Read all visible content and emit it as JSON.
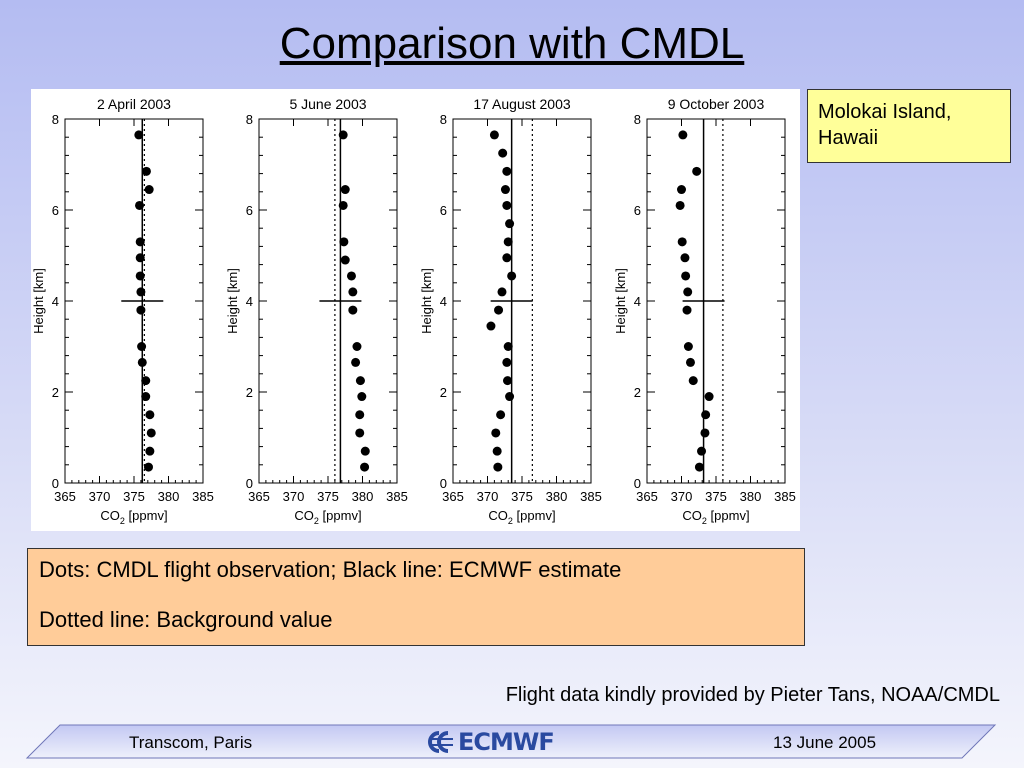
{
  "slide": {
    "title": "Comparison with CMDL",
    "location": "Molokai Island,\nHawaii",
    "legend_line1": "Dots: CMDL flight observation; Black line: ECMWF estimate",
    "legend_line2": "Dotted line: Background value",
    "credit": "Flight data kindly provided by Pieter Tans, NOAA/CMDL",
    "footer_left": "Transcom, Paris",
    "footer_logo": "ECMWF",
    "footer_right": "13 June 2005"
  },
  "colors": {
    "footer_logo": "#2a4aa0",
    "legend_bg": "#ffcc99",
    "location_bg": "#ffff99"
  },
  "chart_data": [
    {
      "type": "scatter",
      "title": "2 April 2003",
      "xlabel": "CO2 [ppmv]",
      "ylabel": "Height [km]",
      "xlim": [
        365,
        385
      ],
      "ylim": [
        0,
        8
      ],
      "xticks": [
        365,
        370,
        375,
        380,
        385
      ],
      "yticks": [
        0,
        2,
        4,
        6,
        8
      ],
      "ecmwf_line": 376.2,
      "background_line": 376.5,
      "marker_height": 4,
      "points": [
        {
          "x": 375.7,
          "y": 7.65
        },
        {
          "x": 376.8,
          "y": 6.85
        },
        {
          "x": 377.2,
          "y": 6.45
        },
        {
          "x": 375.8,
          "y": 6.1
        },
        {
          "x": 375.9,
          "y": 5.3
        },
        {
          "x": 375.9,
          "y": 4.95
        },
        {
          "x": 375.9,
          "y": 4.55
        },
        {
          "x": 376.0,
          "y": 4.2
        },
        {
          "x": 376.0,
          "y": 3.8
        },
        {
          "x": 376.1,
          "y": 3.0
        },
        {
          "x": 376.2,
          "y": 2.65
        },
        {
          "x": 376.7,
          "y": 2.25
        },
        {
          "x": 376.7,
          "y": 1.9
        },
        {
          "x": 377.3,
          "y": 1.5
        },
        {
          "x": 377.5,
          "y": 1.1
        },
        {
          "x": 377.3,
          "y": 0.7
        },
        {
          "x": 377.1,
          "y": 0.35
        }
      ]
    },
    {
      "type": "scatter",
      "title": "5 June 2003",
      "xlabel": "CO2 [ppmv]",
      "ylabel": "Height [km]",
      "xlim": [
        365,
        385
      ],
      "ylim": [
        0,
        8
      ],
      "xticks": [
        365,
        370,
        375,
        380,
        385
      ],
      "yticks": [
        0,
        2,
        4,
        6,
        8
      ],
      "ecmwf_line": 376.8,
      "background_line": 376.0,
      "marker_height": 4,
      "points": [
        {
          "x": 377.2,
          "y": 7.65
        },
        {
          "x": 377.5,
          "y": 6.45
        },
        {
          "x": 377.2,
          "y": 6.1
        },
        {
          "x": 377.3,
          "y": 5.3
        },
        {
          "x": 377.5,
          "y": 4.9
        },
        {
          "x": 378.4,
          "y": 4.55
        },
        {
          "x": 378.6,
          "y": 4.2
        },
        {
          "x": 378.6,
          "y": 3.8
        },
        {
          "x": 379.2,
          "y": 3.0
        },
        {
          "x": 379.0,
          "y": 2.65
        },
        {
          "x": 379.7,
          "y": 2.25
        },
        {
          "x": 379.9,
          "y": 1.9
        },
        {
          "x": 379.6,
          "y": 1.5
        },
        {
          "x": 379.6,
          "y": 1.1
        },
        {
          "x": 380.4,
          "y": 0.7
        },
        {
          "x": 380.3,
          "y": 0.35
        }
      ]
    },
    {
      "type": "scatter",
      "title": "17 August 2003",
      "xlabel": "CO2 [ppmv]",
      "ylabel": "Height [km]",
      "xlim": [
        365,
        385
      ],
      "ylim": [
        0,
        8
      ],
      "xticks": [
        365,
        370,
        375,
        380,
        385
      ],
      "yticks": [
        0,
        2,
        4,
        6,
        8
      ],
      "ecmwf_line": 373.5,
      "background_line": 376.5,
      "marker_height": 4,
      "points": [
        {
          "x": 371.0,
          "y": 7.65
        },
        {
          "x": 372.2,
          "y": 7.25
        },
        {
          "x": 372.8,
          "y": 6.85
        },
        {
          "x": 372.6,
          "y": 6.45
        },
        {
          "x": 372.8,
          "y": 6.1
        },
        {
          "x": 373.2,
          "y": 5.7
        },
        {
          "x": 373.0,
          "y": 5.3
        },
        {
          "x": 372.8,
          "y": 4.95
        },
        {
          "x": 373.5,
          "y": 4.55
        },
        {
          "x": 372.1,
          "y": 4.2
        },
        {
          "x": 371.6,
          "y": 3.8
        },
        {
          "x": 370.5,
          "y": 3.45
        },
        {
          "x": 373.0,
          "y": 3.0
        },
        {
          "x": 372.8,
          "y": 2.65
        },
        {
          "x": 372.9,
          "y": 2.25
        },
        {
          "x": 373.2,
          "y": 1.9
        },
        {
          "x": 371.9,
          "y": 1.5
        },
        {
          "x": 371.2,
          "y": 1.1
        },
        {
          "x": 371.4,
          "y": 0.7
        },
        {
          "x": 371.5,
          "y": 0.35
        }
      ]
    },
    {
      "type": "scatter",
      "title": "9 October 2003",
      "xlabel": "CO2 [ppmv]",
      "ylabel": "Height [km]",
      "xlim": [
        365,
        385
      ],
      "ylim": [
        0,
        8
      ],
      "xticks": [
        365,
        370,
        375,
        380,
        385
      ],
      "yticks": [
        0,
        2,
        4,
        6,
        8
      ],
      "ecmwf_line": 373.2,
      "background_line": 376.0,
      "marker_height": 4,
      "points": [
        {
          "x": 370.2,
          "y": 7.65
        },
        {
          "x": 372.2,
          "y": 6.85
        },
        {
          "x": 370.0,
          "y": 6.45
        },
        {
          "x": 369.8,
          "y": 6.1
        },
        {
          "x": 370.1,
          "y": 5.3
        },
        {
          "x": 370.5,
          "y": 4.95
        },
        {
          "x": 370.6,
          "y": 4.55
        },
        {
          "x": 370.9,
          "y": 4.2
        },
        {
          "x": 370.8,
          "y": 3.8
        },
        {
          "x": 371.0,
          "y": 3.0
        },
        {
          "x": 371.3,
          "y": 2.65
        },
        {
          "x": 371.7,
          "y": 2.25
        },
        {
          "x": 374.0,
          "y": 1.9
        },
        {
          "x": 373.5,
          "y": 1.5
        },
        {
          "x": 373.4,
          "y": 1.1
        },
        {
          "x": 372.9,
          "y": 0.7
        },
        {
          "x": 372.6,
          "y": 0.35
        }
      ]
    }
  ]
}
